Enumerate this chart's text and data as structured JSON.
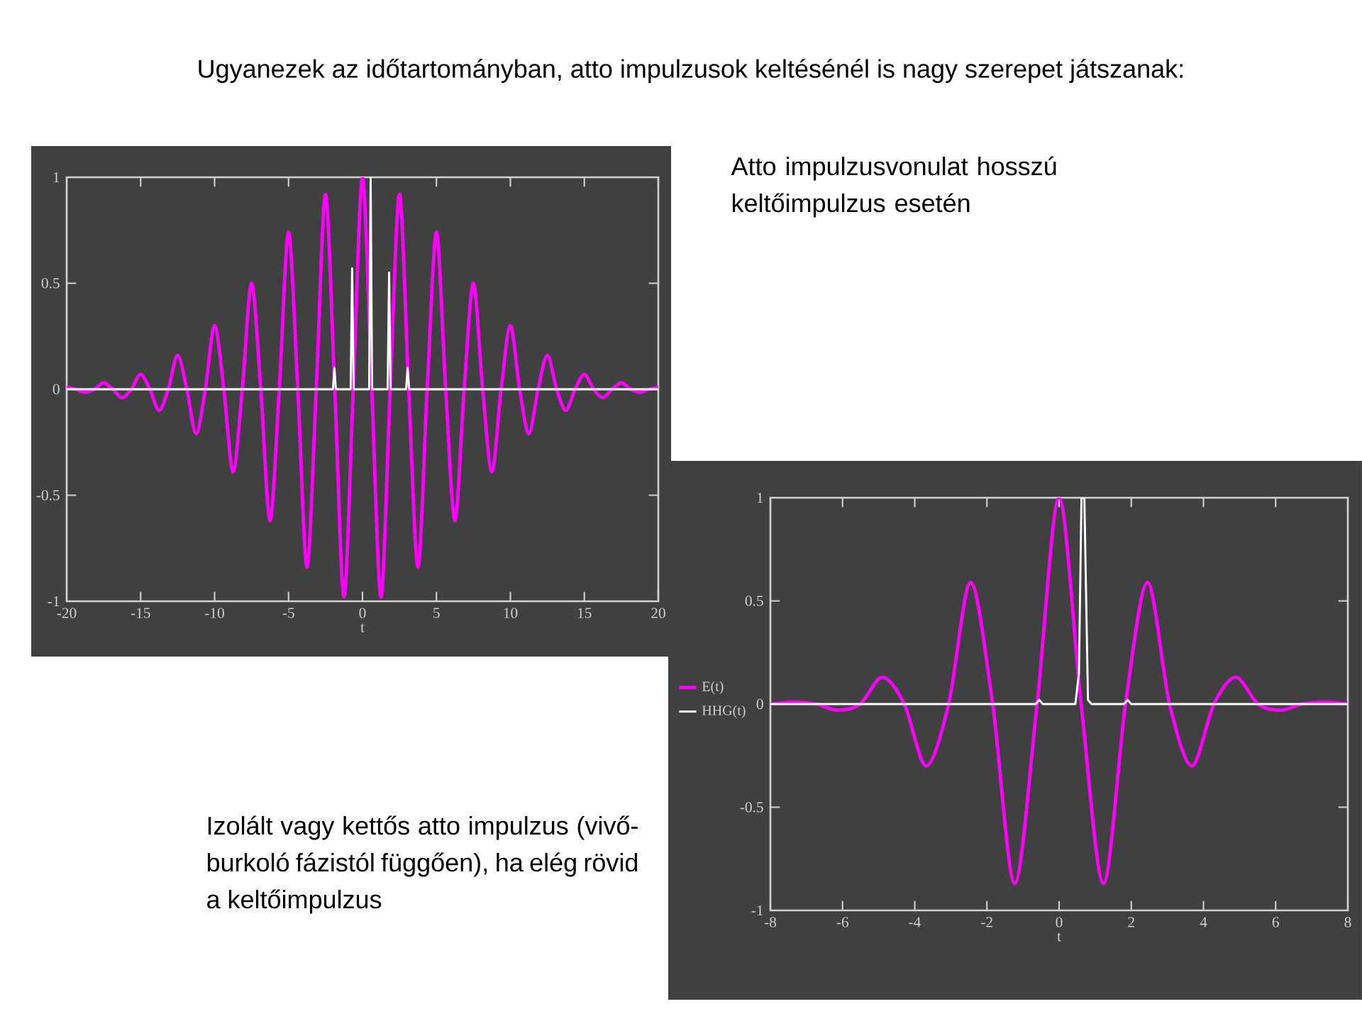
{
  "chart_data": [
    {
      "type": "line",
      "title": "Ugyanezek az időtartományban, atto impulzusok keltésénél is nagy szerepet játszanak:",
      "xlabel": "t",
      "xlim": [
        -20,
        20
      ],
      "ylim": [
        -1,
        1
      ],
      "xticks": [
        -20,
        -15,
        -10,
        -5,
        0,
        5,
        10,
        15,
        20
      ],
      "yticks": [
        -1,
        -0.5,
        0,
        0.5,
        1
      ],
      "annotations": [
        "Atto impulzusvonulat hosszú keltőimpulzus esetén"
      ],
      "series": [
        {
          "color": "#ff00ff",
          "x": [
            -20,
            -19.375,
            -18.75,
            -18.125,
            -17.5,
            -16.875,
            -16.25,
            -15.625,
            -15,
            -14.375,
            -13.75,
            -13.125,
            -12.5,
            -11.875,
            -11.25,
            -10.625,
            -10,
            -9.375,
            -8.75,
            -8.125,
            -7.5,
            -6.875,
            -6.25,
            -5.625,
            -5,
            -4.375,
            -3.75,
            -3.125,
            -2.5,
            -1.875,
            -1.25,
            -0.625,
            0,
            0.625,
            1.25,
            1.875,
            2.5,
            3.125,
            3.75,
            4.375,
            5,
            5.625,
            6.25,
            6.875,
            7.5,
            8.125,
            8.75,
            9.375,
            10,
            10.625,
            11.25,
            11.875,
            12.5,
            13.125,
            13.75,
            14.375,
            15,
            15.625,
            16.25,
            16.875,
            17.5,
            18.125,
            18.75,
            19.375,
            20
          ],
          "values": [
            0.01,
            0,
            -0.015,
            0,
            0.03,
            0,
            -0.04,
            0,
            0.07,
            0,
            -0.1,
            0,
            0.16,
            0,
            -0.21,
            0,
            0.3,
            0,
            -0.39,
            0,
            0.5,
            0,
            -0.62,
            0,
            0.74,
            0,
            -0.84,
            0,
            0.92,
            0,
            -0.98,
            0,
            1,
            0,
            -0.98,
            0,
            0.92,
            0,
            -0.84,
            0,
            0.74,
            0,
            -0.62,
            0,
            0.5,
            0,
            -0.39,
            0,
            0.3,
            0,
            -0.21,
            0,
            0.16,
            0,
            -0.1,
            0,
            0.07,
            0,
            -0.04,
            0,
            0.03,
            0,
            -0.015,
            0,
            0.01
          ]
        },
        {
          "color": "#ffffff",
          "x": [
            -20,
            -2.0,
            -1.9,
            -1.8,
            -0.8,
            -0.7,
            -0.6,
            0.45,
            0.55,
            0.65,
            1.7,
            1.8,
            1.9,
            2.95,
            3.05,
            3.15,
            20
          ],
          "values": [
            0,
            0,
            0.1,
            0,
            0,
            0.57,
            0,
            0,
            1,
            0,
            0,
            0.55,
            0,
            0,
            0.1,
            0,
            0
          ]
        }
      ]
    },
    {
      "type": "line",
      "xlabel": "t",
      "xlim": [
        -8,
        8
      ],
      "ylim": [
        -1,
        1
      ],
      "xticks": [
        -8,
        -6,
        -4,
        -2,
        0,
        2,
        4,
        6,
        8
      ],
      "yticks": [
        -1,
        -0.5,
        0,
        0.5,
        1
      ],
      "legend": "left",
      "annotations": [
        "Izolált vagy kettős atto impulzus (vivő-burkoló fázistól függően), ha elég rövid a keltőimpulzus"
      ],
      "series": [
        {
          "name": "E(t)",
          "color": "#ff00ff",
          "x": [
            -8,
            -7.35,
            -6.74,
            -6.13,
            -5.51,
            -4.9,
            -4.29,
            -3.68,
            -3.06,
            -2.45,
            -1.84,
            -1.23,
            -0.61,
            0,
            0.61,
            1.23,
            1.84,
            2.45,
            3.06,
            3.68,
            4.29,
            4.9,
            5.51,
            6.13,
            6.74,
            7.35,
            8
          ],
          "values": [
            0,
            0.01,
            0,
            -0.03,
            0,
            0.13,
            0,
            -0.3,
            0,
            0.59,
            0,
            -0.87,
            0,
            1,
            0,
            -0.87,
            0,
            0.59,
            0,
            -0.3,
            0,
            0.13,
            0,
            -0.03,
            0,
            0.01,
            0
          ]
        },
        {
          "name": "HHG(t)",
          "color": "#ffffff",
          "x": [
            -8,
            -0.65,
            -0.55,
            -0.45,
            0.45,
            0.55,
            0.62,
            0.7,
            0.8,
            0.9,
            1.8,
            1.9,
            2.0,
            8
          ],
          "values": [
            0,
            0,
            0.02,
            0,
            0,
            0.15,
            1,
            1,
            0.02,
            0,
            0,
            0.02,
            0,
            0
          ]
        }
      ]
    }
  ]
}
